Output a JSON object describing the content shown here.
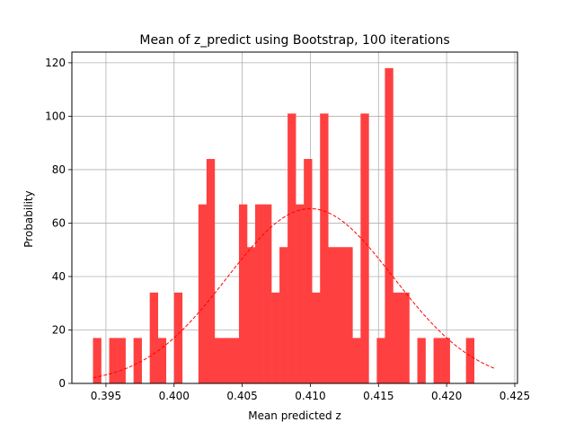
{
  "chart_data": {
    "type": "bar",
    "title": "Mean of z_predict using Bootstrap, 100 iterations",
    "xlabel": "Mean predicted z",
    "ylabel": "Probability",
    "xlim": [
      0.3925,
      0.4252
    ],
    "ylim": [
      0,
      124
    ],
    "grid": true,
    "bar_color": "#ff4040",
    "curve_color": "#ff0000",
    "xticks": [
      0.395,
      0.4,
      0.405,
      0.41,
      0.415,
      0.42,
      0.425
    ],
    "xtick_labels": [
      "0.395",
      "0.400",
      "0.405",
      "0.410",
      "0.415",
      "0.420",
      "0.425"
    ],
    "yticks": [
      0,
      20,
      40,
      60,
      80,
      100,
      120
    ],
    "ytick_labels": [
      "0",
      "20",
      "40",
      "60",
      "80",
      "100",
      "120"
    ],
    "bins": {
      "start": 0.39405,
      "width": 0.000595,
      "values": [
        17,
        0,
        17,
        17,
        0,
        17,
        0,
        34,
        17,
        0,
        34,
        0,
        0,
        67,
        84,
        17,
        17,
        17,
        67,
        51,
        67,
        67,
        34,
        51,
        101,
        67,
        84,
        34,
        101,
        51,
        51,
        51,
        17,
        101,
        0,
        17,
        118,
        34,
        34,
        0,
        17,
        0,
        17,
        17,
        0,
        0,
        17
      ]
    },
    "fit_curve": {
      "style": "dashed",
      "mean": 0.41,
      "std": 0.0061,
      "x_range": [
        0.39405,
        0.42357
      ]
    }
  }
}
